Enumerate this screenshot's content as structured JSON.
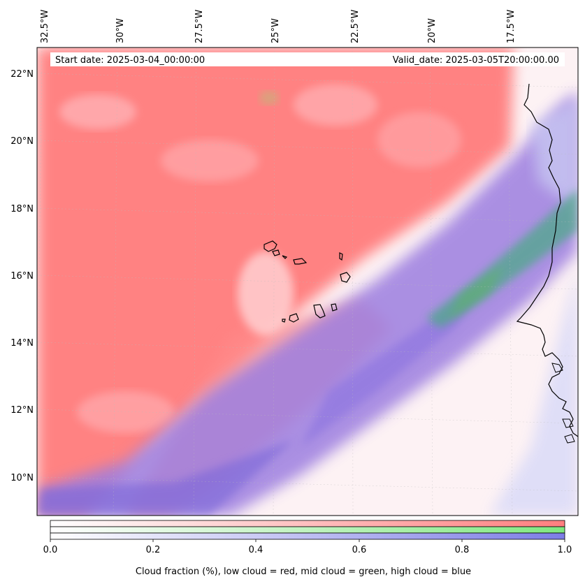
{
  "header": {
    "start_date": "Start date: 2025-03-04_00:00:00",
    "valid_date": "Valid_date: 2025-03-05T20:00:00.00"
  },
  "axes": {
    "lon_ticks": [
      "32.5°W",
      "30°W",
      "27.5°W",
      "25°W",
      "22.5°W",
      "20°W",
      "17.5°W"
    ],
    "lat_ticks": [
      "22°N",
      "20°N",
      "18°N",
      "16°N",
      "14°N",
      "12°N",
      "10°N"
    ]
  },
  "colorbar": {
    "ticks": [
      "0.0",
      "0.2",
      "0.4",
      "0.6",
      "0.8",
      "1.0"
    ],
    "label": "Cloud fraction (%), low cloud = red, mid cloud = green, high cloud = blue",
    "low_color": "#ff7f7f",
    "mid_color": "#85e985",
    "high_color": "#7f7fe8"
  },
  "colors": {
    "low_cloud": "#ff8080",
    "high_cloud": "#8a6fd6",
    "mid_cloud": "#5fa68a",
    "coastline": "#000000"
  }
}
